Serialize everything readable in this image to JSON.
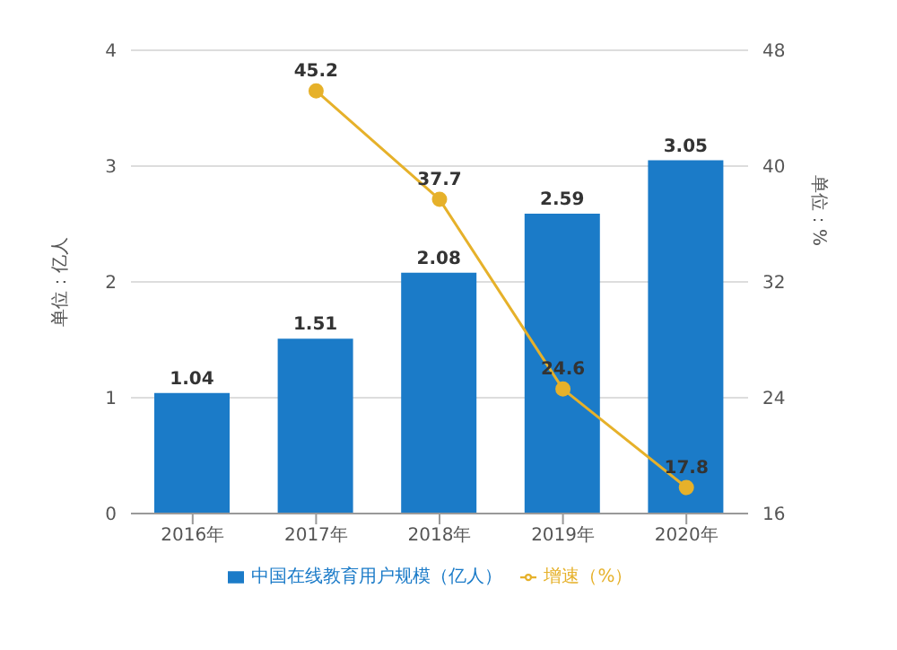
{
  "chart_data": {
    "type": "bar",
    "categories": [
      "2016年",
      "2017年",
      "2018年",
      "2019年",
      "2020年"
    ],
    "ylabel": "单位：亿人",
    "y2label": "单位：%",
    "series": [
      {
        "name": "中国在线教育用户规模（亿人）",
        "color": "#1b7bc8",
        "values": [
          1.04,
          1.51,
          2.08,
          2.59,
          3.05
        ]
      },
      {
        "name": "增速（%）",
        "type": "line",
        "axis": "y2",
        "color": "#e6b12a",
        "values": [
          null,
          45.2,
          37.7,
          24.6,
          17.8
        ]
      }
    ],
    "ylim": [
      0,
      4
    ],
    "yticks": [
      0,
      1,
      2,
      3,
      4
    ],
    "y2lim": [
      16,
      48
    ],
    "y2ticks": [
      16,
      24,
      32,
      40,
      48
    ],
    "grid": "y",
    "legend": "bottom",
    "marker": "circle",
    "data_labels": true
  }
}
